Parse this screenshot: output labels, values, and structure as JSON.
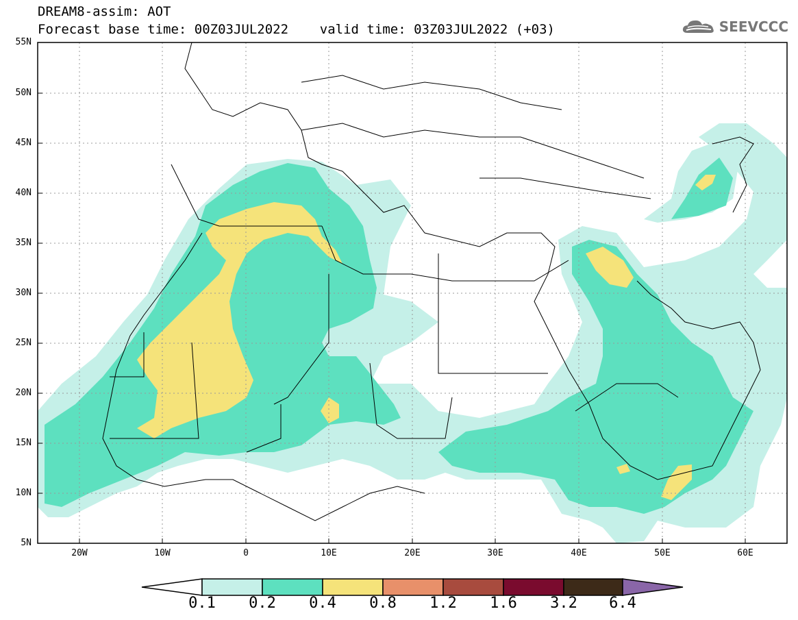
{
  "header": {
    "title_line1": "DREAM8-assim: AOT",
    "title_line2": "Forecast base time: 00Z03JUL2022    valid time: 03Z03JUL2022 (+03)"
  },
  "logo": {
    "text": "SEEVCCC",
    "icon": "cloud-icon",
    "color": "#777777"
  },
  "map": {
    "projection": "lat-lon",
    "lon_range": [
      -25,
      65
    ],
    "lat_range": [
      5,
      55
    ],
    "lat_ticks": [
      "55N",
      "50N",
      "45N",
      "40N",
      "35N",
      "30N",
      "25N",
      "20N",
      "15N",
      "10N",
      "5N"
    ],
    "lon_ticks": [
      "20W",
      "10W",
      "0",
      "10E",
      "20E",
      "30E",
      "40E",
      "50E",
      "60E"
    ],
    "gridlines": "dotted"
  },
  "colorbar": {
    "levels": [
      "0.1",
      "0.2",
      "0.4",
      "0.8",
      "1.2",
      "1.6",
      "3.2",
      "6.4"
    ],
    "colors": [
      "#c5f0e8",
      "#5de0bf",
      "#f5e37a",
      "#e8906a",
      "#a84b3e",
      "#7a0b2e",
      "#3d2a18",
      "#8a66a8"
    ],
    "extend": "both"
  }
}
